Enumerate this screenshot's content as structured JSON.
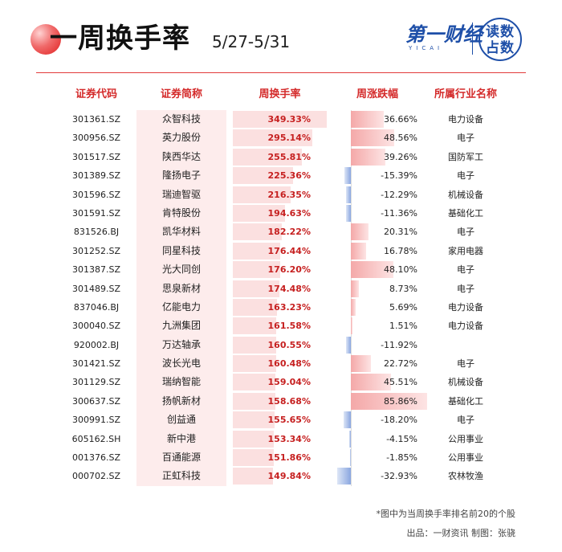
{
  "header": {
    "title": "一周换手率",
    "date_range": "5/27-5/31",
    "brand_cn": "第一财经",
    "brand_en": "YICAI",
    "badge": "读数占数"
  },
  "columns": [
    "证券代码",
    "证券简称",
    "周换手率",
    "周涨跌幅",
    "所属行业名称"
  ],
  "rows": [
    {
      "code": "301361.SZ",
      "name": "众智科技",
      "turnover": "349.33%",
      "turnover_pct": 349.33,
      "change": "36.66%",
      "change_pct": 36.66,
      "industry": "电力设备"
    },
    {
      "code": "300956.SZ",
      "name": "英力股份",
      "turnover": "295.14%",
      "turnover_pct": 295.14,
      "change": "48.56%",
      "change_pct": 48.56,
      "industry": "电子"
    },
    {
      "code": "301517.SZ",
      "name": "陕西华达",
      "turnover": "255.81%",
      "turnover_pct": 255.81,
      "change": "39.26%",
      "change_pct": 39.26,
      "industry": "国防军工"
    },
    {
      "code": "301389.SZ",
      "name": "隆扬电子",
      "turnover": "225.36%",
      "turnover_pct": 225.36,
      "change": "-15.39%",
      "change_pct": -15.39,
      "industry": "电子"
    },
    {
      "code": "301596.SZ",
      "name": "瑞迪智驱",
      "turnover": "216.35%",
      "turnover_pct": 216.35,
      "change": "-12.29%",
      "change_pct": -12.29,
      "industry": "机械设备"
    },
    {
      "code": "301591.SZ",
      "name": "肯特股份",
      "turnover": "194.63%",
      "turnover_pct": 194.63,
      "change": "-11.36%",
      "change_pct": -11.36,
      "industry": "基础化工"
    },
    {
      "code": "831526.BJ",
      "name": "凯华材料",
      "turnover": "182.22%",
      "turnover_pct": 182.22,
      "change": "20.31%",
      "change_pct": 20.31,
      "industry": "电子"
    },
    {
      "code": "301252.SZ",
      "name": "同星科技",
      "turnover": "176.44%",
      "turnover_pct": 176.44,
      "change": "16.78%",
      "change_pct": 16.78,
      "industry": "家用电器"
    },
    {
      "code": "301387.SZ",
      "name": "光大同创",
      "turnover": "176.20%",
      "turnover_pct": 176.2,
      "change": "48.10%",
      "change_pct": 48.1,
      "industry": "电子"
    },
    {
      "code": "301489.SZ",
      "name": "思泉新材",
      "turnover": "174.48%",
      "turnover_pct": 174.48,
      "change": "8.73%",
      "change_pct": 8.73,
      "industry": "电子"
    },
    {
      "code": "837046.BJ",
      "name": "亿能电力",
      "turnover": "163.23%",
      "turnover_pct": 163.23,
      "change": "5.69%",
      "change_pct": 5.69,
      "industry": "电力设备"
    },
    {
      "code": "300040.SZ",
      "name": "九洲集团",
      "turnover": "161.58%",
      "turnover_pct": 161.58,
      "change": "1.51%",
      "change_pct": 1.51,
      "industry": "电力设备"
    },
    {
      "code": "920002.BJ",
      "name": "万达轴承",
      "turnover": "160.55%",
      "turnover_pct": 160.55,
      "change": "-11.92%",
      "change_pct": -11.92,
      "industry": ""
    },
    {
      "code": "301421.SZ",
      "name": "波长光电",
      "turnover": "160.48%",
      "turnover_pct": 160.48,
      "change": "22.72%",
      "change_pct": 22.72,
      "industry": "电子"
    },
    {
      "code": "301129.SZ",
      "name": "瑞纳智能",
      "turnover": "159.04%",
      "turnover_pct": 159.04,
      "change": "45.51%",
      "change_pct": 45.51,
      "industry": "机械设备"
    },
    {
      "code": "300637.SZ",
      "name": "扬帆新材",
      "turnover": "158.68%",
      "turnover_pct": 158.68,
      "change": "85.86%",
      "change_pct": 85.86,
      "industry": "基础化工"
    },
    {
      "code": "300991.SZ",
      "name": "创益通",
      "turnover": "155.65%",
      "turnover_pct": 155.65,
      "change": "-18.20%",
      "change_pct": -18.2,
      "industry": "电子"
    },
    {
      "code": "605162.SH",
      "name": "新中港",
      "turnover": "153.34%",
      "turnover_pct": 153.34,
      "change": "-4.15%",
      "change_pct": -4.15,
      "industry": "公用事业"
    },
    {
      "code": "001376.SZ",
      "name": "百通能源",
      "turnover": "151.86%",
      "turnover_pct": 151.86,
      "change": "-1.85%",
      "change_pct": -1.85,
      "industry": "公用事业"
    },
    {
      "code": "000702.SZ",
      "name": "正虹科技",
      "turnover": "149.84%",
      "turnover_pct": 149.84,
      "change": "-32.93%",
      "change_pct": -32.93,
      "industry": "农林牧渔"
    }
  ],
  "footnote": "*图中为当周换手率排名前20的个股",
  "source": "出品：一财资讯  制图：张骁",
  "colors": {
    "accent": "#d42a2a",
    "brand": "#1e4fa8",
    "positive": "#f4a8a8",
    "negative": "#8aa6e0"
  }
}
